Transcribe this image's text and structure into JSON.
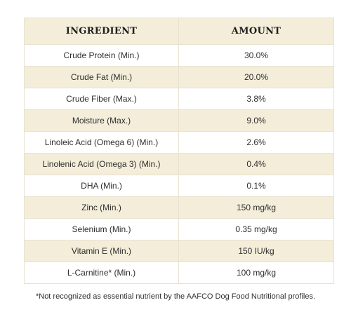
{
  "table": {
    "headers": {
      "ingredient": "INGREDIENT",
      "amount": "AMOUNT"
    },
    "rows": [
      {
        "ingredient": "Crude Protein (Min.)",
        "amount": "30.0%"
      },
      {
        "ingredient": "Crude Fat (Min.)",
        "amount": "20.0%"
      },
      {
        "ingredient": "Crude Fiber (Max.)",
        "amount": "3.8%"
      },
      {
        "ingredient": "Moisture (Max.)",
        "amount": "9.0%"
      },
      {
        "ingredient": "Linoleic Acid (Omega 6) (Min.)",
        "amount": "2.6%"
      },
      {
        "ingredient": "Linolenic Acid (Omega 3) (Min.)",
        "amount": "0.4%"
      },
      {
        "ingredient": "DHA (Min.)",
        "amount": "0.1%"
      },
      {
        "ingredient": "Zinc (Min.)",
        "amount": "150 mg/kg"
      },
      {
        "ingredient": "Selenium (Min.)",
        "amount": "0.35 mg/kg"
      },
      {
        "ingredient": "Vitamin E (Min.)",
        "amount": "150 IU/kg"
      },
      {
        "ingredient": "L-Carnitine* (Min.)",
        "amount": "100 mg/kg"
      }
    ]
  },
  "footnote": "*Not recognized as essential nutrient by the AAFCO Dog Food Nutritional profiles.",
  "colors": {
    "header_bg": "#f3edd9",
    "stripe_bg": "#f3edd9",
    "border": "#e8e2cf"
  }
}
